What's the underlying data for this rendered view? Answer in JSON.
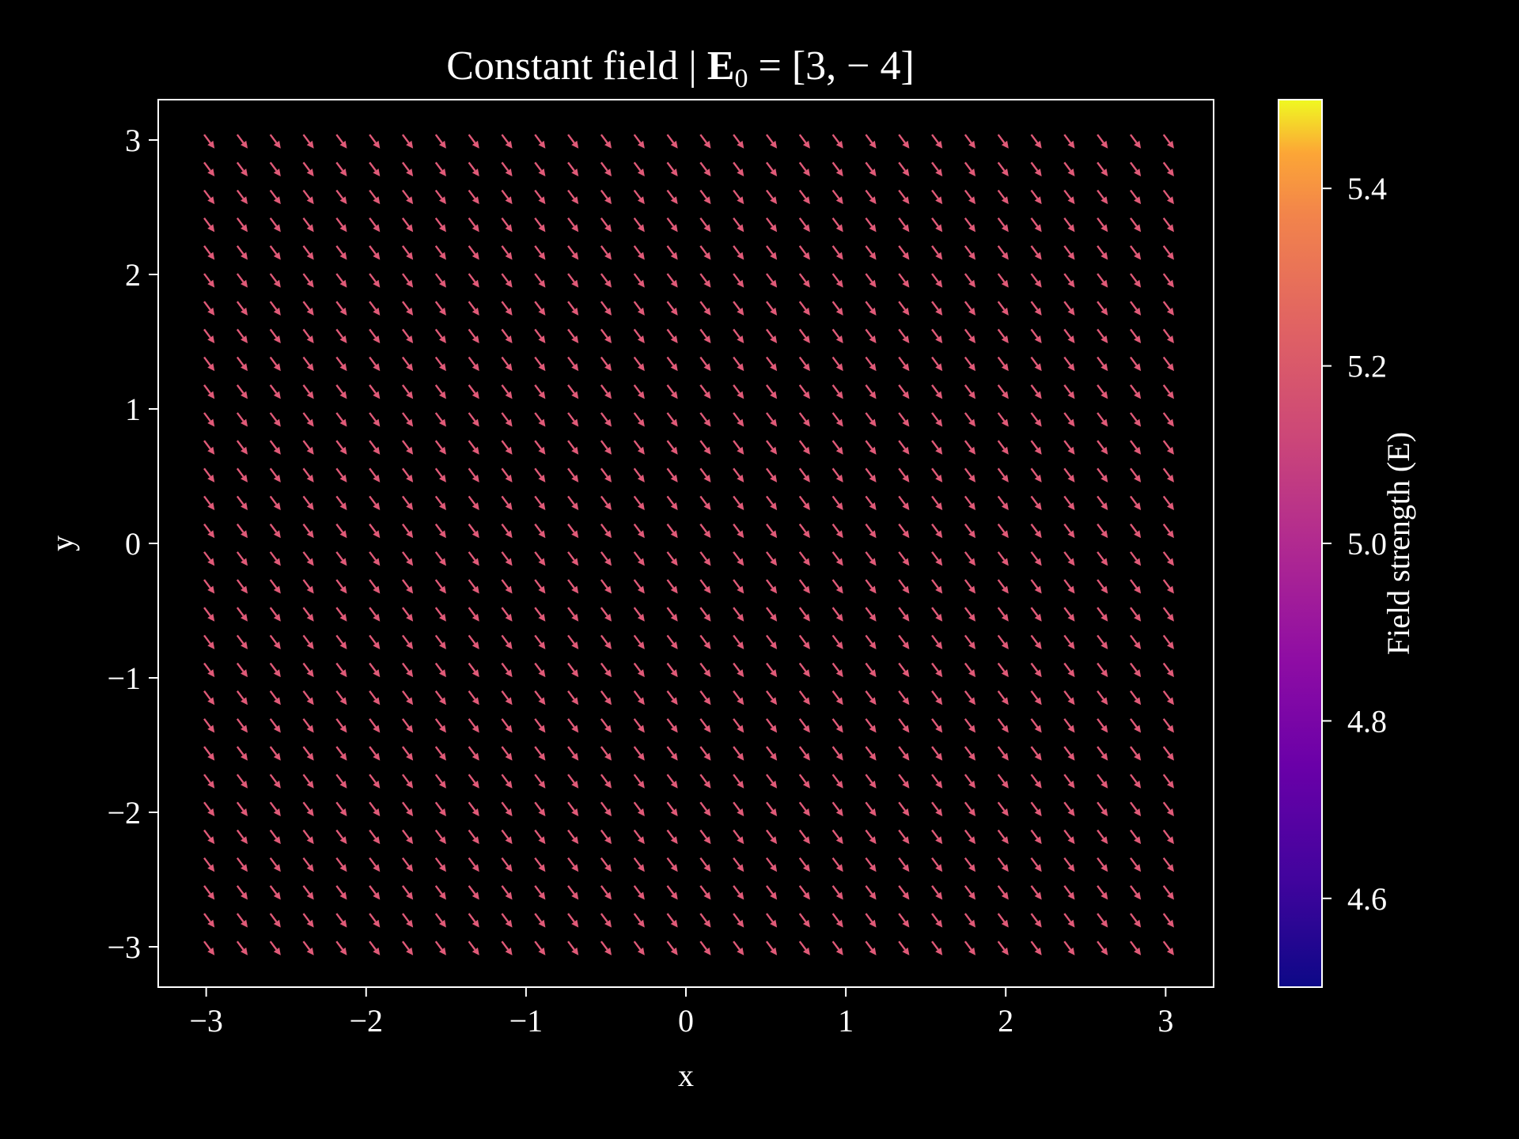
{
  "chart_data": {
    "type": "quiver",
    "title": {
      "prefix": "Constant field | ",
      "vector_symbol": "E",
      "subscript": "0",
      "suffix": " = [3, − 4]"
    },
    "xlabel": "x",
    "ylabel": "y",
    "xlim": [
      -3.3,
      3.3
    ],
    "ylim": [
      -3.3,
      3.3
    ],
    "x_ticks": [
      -3,
      -2,
      -1,
      0,
      1,
      2,
      3
    ],
    "y_ticks": [
      -3,
      -2,
      -1,
      0,
      1,
      2,
      3
    ],
    "x_tick_labels": [
      "−3",
      "−2",
      "−1",
      "0",
      "1",
      "2",
      "3"
    ],
    "y_tick_labels": [
      "−3",
      "−2",
      "−1",
      "0",
      "1",
      "2",
      "3"
    ],
    "grid": {
      "x_start": -3,
      "x_end": 3,
      "nx": 30,
      "y_start": -3,
      "y_end": 3,
      "ny": 30
    },
    "field": {
      "Ex": 3,
      "Ey": -4,
      "magnitude": 5.0
    },
    "arrow_color": "#e05a78",
    "colorbar": {
      "label": "Field strength (E)",
      "colormap": "plasma",
      "range": [
        4.5,
        5.5
      ],
      "ticks": [
        4.6,
        4.8,
        5.0,
        5.2,
        5.4
      ],
      "tick_labels": [
        "4.6",
        "4.8",
        "5.0",
        "5.2",
        "5.4"
      ]
    },
    "grid_lines": false,
    "background": "#000000",
    "axis_color": "#ffffff"
  }
}
